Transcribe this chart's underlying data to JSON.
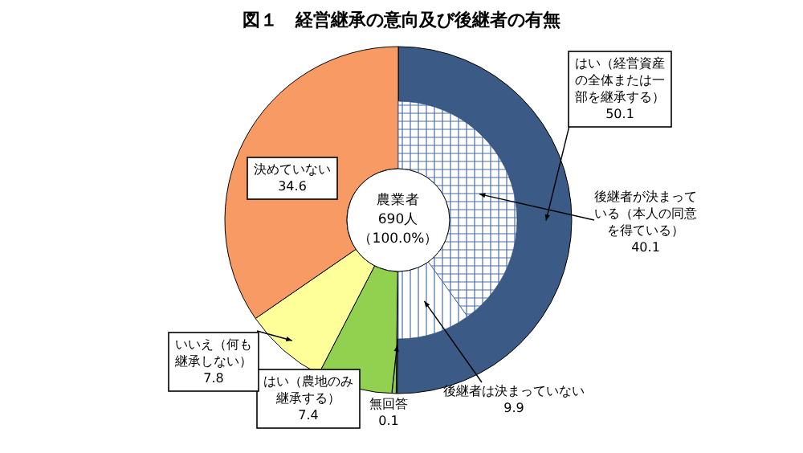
{
  "chart_data": [
    {
      "type": "donut",
      "title": "図１　経営継承の意向及び後継者の有無",
      "categories": [
        "はい（経営資産の全体または一部を継承する）",
        "無回答",
        "はい（農地のみ継承する）",
        "いいえ（何も継承しない）",
        "決めていない"
      ],
      "values": [
        50.1,
        0.1,
        7.4,
        7.8,
        34.6
      ],
      "colors": [
        "#3b5a86",
        "#ffffff",
        "#92d050",
        "#ffff99",
        "#f79a63"
      ],
      "data_labels": true,
      "annotations": [
        "農業者",
        "690人",
        "（100.0%）"
      ]
    },
    {
      "type": "donut",
      "categories": [
        "後継者が決まっている（本人の同意を得ている）",
        "後継者は決まっていない"
      ],
      "values": [
        40.1,
        9.9
      ],
      "colors": [
        "#4a6fa5",
        "#4a6fa5"
      ],
      "data_labels": true
    }
  ]
}
